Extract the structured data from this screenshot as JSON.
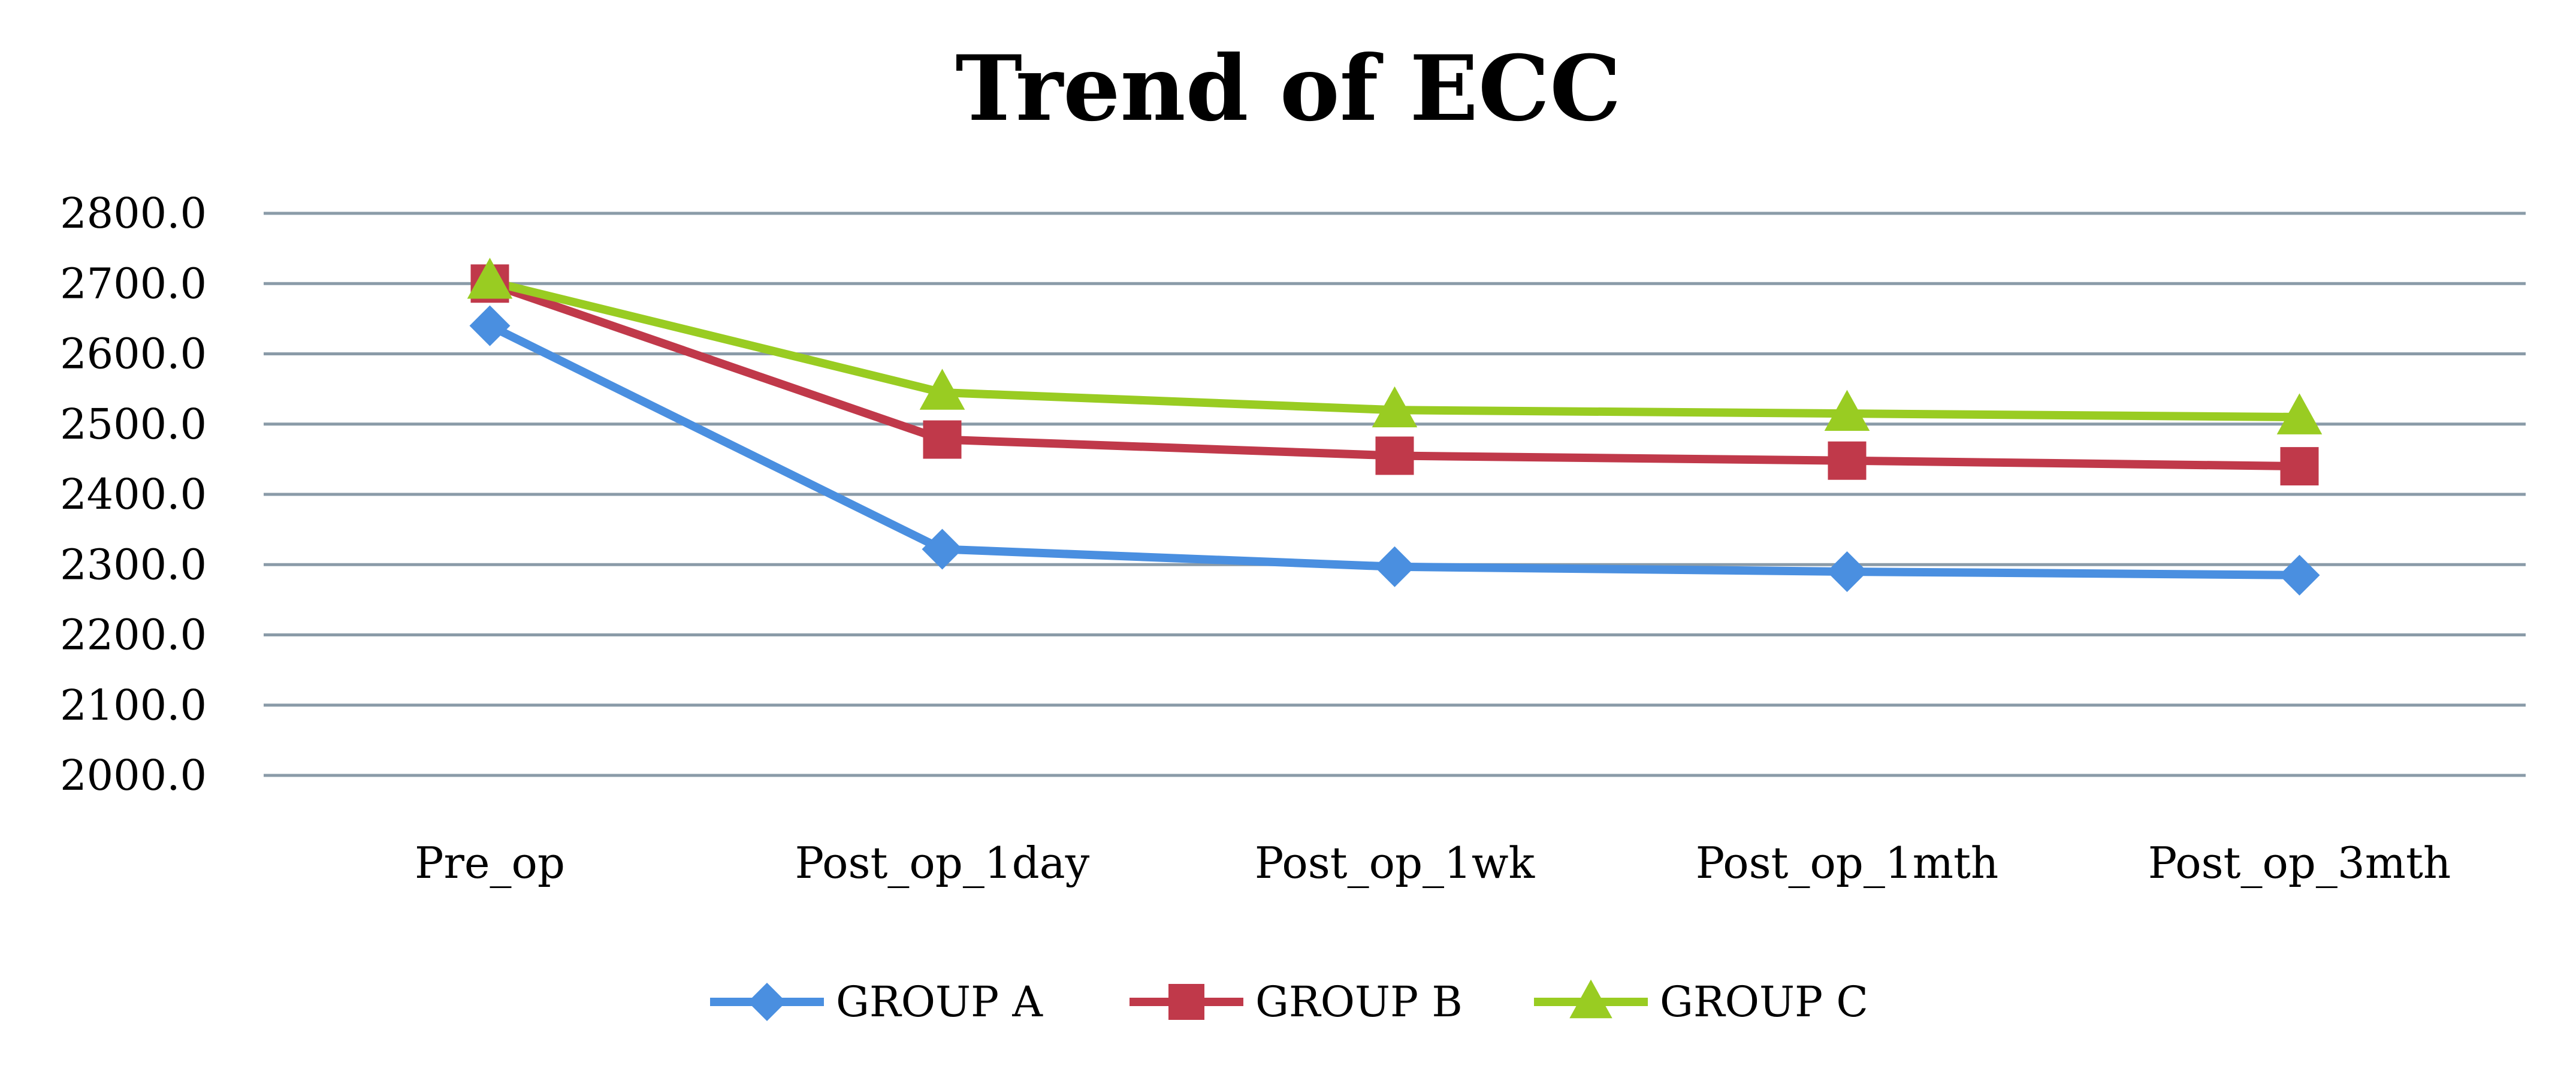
{
  "chart_data": {
    "type": "line",
    "title": "Trend of ECC",
    "xlabel": "",
    "ylabel": "",
    "categories": [
      "Pre_op",
      "Post_op_1day",
      "Post_op_1wk",
      "Post_op_1mth",
      "Post_op_3mth"
    ],
    "ylim": [
      2000,
      2800
    ],
    "yticks": [
      "2800.0",
      "2700.0",
      "2600.0",
      "2500.0",
      "2400.0",
      "2300.0",
      "2200.0",
      "2100.0",
      "2000.0"
    ],
    "grid": true,
    "legend_position": "bottom",
    "series": [
      {
        "name": "GROUP A",
        "marker": "diamond",
        "color": "#4a8fe0",
        "values": [
          2640,
          2322,
          2297,
          2290,
          2285
        ]
      },
      {
        "name": "GROUP B",
        "marker": "square",
        "color": "#c0394a",
        "values": [
          2700,
          2478,
          2455,
          2448,
          2440
        ]
      },
      {
        "name": "GROUP C",
        "marker": "triangle",
        "color": "#99cc22",
        "values": [
          2703,
          2545,
          2520,
          2515,
          2510
        ]
      }
    ]
  }
}
